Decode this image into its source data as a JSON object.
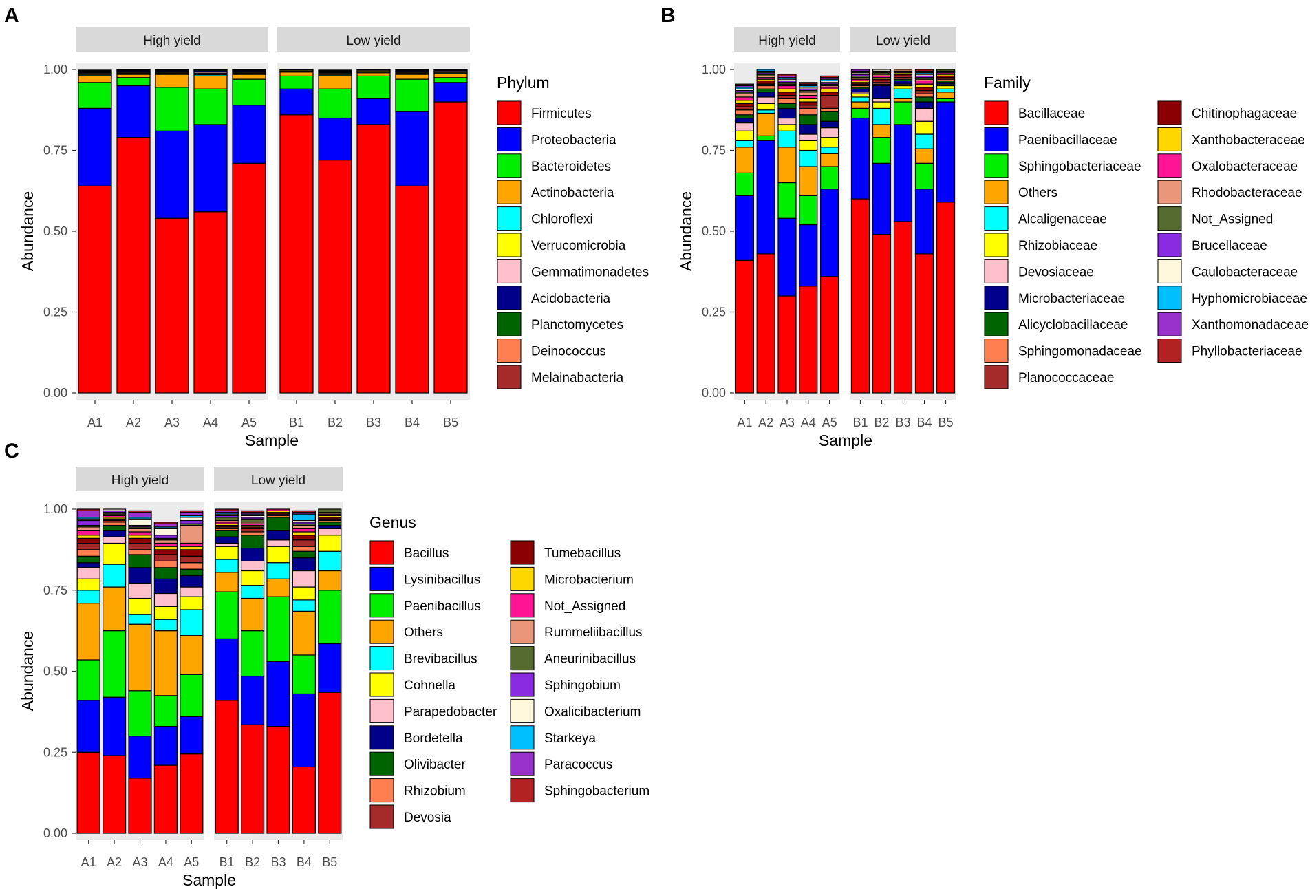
{
  "panels": {
    "A": {
      "letter": "A"
    },
    "B": {
      "letter": "B"
    },
    "C": {
      "letter": "C"
    }
  },
  "chart_data": [
    {
      "panel": "A",
      "type": "bar",
      "stacked": true,
      "title": "",
      "xlabel": "Sample",
      "ylabel": "Abundance",
      "ylim": [
        0,
        1
      ],
      "yticks": [
        "0.00",
        "0.25",
        "0.50",
        "0.75",
        "1.00"
      ],
      "facets": [
        {
          "label": "High yield",
          "categories": [
            "A1",
            "A2",
            "A3",
            "A4",
            "A5"
          ]
        },
        {
          "label": "Low yield",
          "categories": [
            "B1",
            "B2",
            "B3",
            "B4",
            "B5"
          ]
        }
      ],
      "legend_title": "Phylum",
      "legend_columns": 1,
      "series": [
        {
          "name": "Firmicutes",
          "color": "#ff0000",
          "values": [
            0.64,
            0.79,
            0.54,
            0.56,
            0.71,
            0.86,
            0.72,
            0.83,
            0.64,
            0.9
          ]
        },
        {
          "name": "Proteobacteria",
          "color": "#0000ff",
          "values": [
            0.24,
            0.16,
            0.27,
            0.27,
            0.18,
            0.08,
            0.13,
            0.08,
            0.23,
            0.06
          ]
        },
        {
          "name": "Bacteroidetes",
          "color": "#00ee00",
          "values": [
            0.08,
            0.025,
            0.135,
            0.11,
            0.08,
            0.04,
            0.09,
            0.07,
            0.1,
            0.015
          ]
        },
        {
          "name": "Actinobacteria",
          "color": "#ffa500",
          "values": [
            0.02,
            0.01,
            0.04,
            0.04,
            0.015,
            0.012,
            0.04,
            0.01,
            0.015,
            0.012
          ]
        },
        {
          "name": "Chloroflexi",
          "color": "#00ffff",
          "values": [
            0.003,
            0.003,
            0.003,
            0.004,
            0.003,
            0.003,
            0.003,
            0.003,
            0.003,
            0.003
          ]
        },
        {
          "name": "Verrucomicrobia",
          "color": "#ffff00",
          "values": [
            0.003,
            0.003,
            0.003,
            0.004,
            0.003,
            0.003,
            0.003,
            0.003,
            0.003,
            0.003
          ]
        },
        {
          "name": "Gemmatimonadetes",
          "color": "#ffc0cb",
          "values": [
            0.003,
            0.003,
            0.003,
            0.004,
            0.003,
            0.003,
            0.003,
            0.003,
            0.003,
            0.003
          ]
        },
        {
          "name": "Acidobacteria",
          "color": "#00008b",
          "values": [
            0.003,
            0.003,
            0.003,
            0.004,
            0.003,
            0.003,
            0.003,
            0.003,
            0.003,
            0.003
          ]
        },
        {
          "name": "Planctomycetes",
          "color": "#006400",
          "values": [
            0.002,
            0.002,
            0.002,
            0.003,
            0.002,
            0.002,
            0.002,
            0.002,
            0.002,
            0.002
          ]
        },
        {
          "name": "Deinococcus",
          "color": "#ff7f50",
          "values": [
            0.002,
            0.002,
            0.002,
            0.003,
            0.002,
            0.002,
            0.002,
            0.002,
            0.002,
            0.002
          ]
        },
        {
          "name": "Melainabacteria",
          "color": "#a52a2a",
          "values": [
            0.002,
            0.002,
            0.002,
            0.003,
            0.002,
            0.002,
            0.002,
            0.002,
            0.002,
            0.002
          ]
        }
      ]
    },
    {
      "panel": "B",
      "type": "bar",
      "stacked": true,
      "title": "",
      "xlabel": "Sample",
      "ylabel": "Abundance",
      "ylim": [
        0,
        1
      ],
      "yticks": [
        "0.00",
        "0.25",
        "0.50",
        "0.75",
        "1.00"
      ],
      "facets": [
        {
          "label": "High yield",
          "categories": [
            "A1",
            "A2",
            "A3",
            "A4",
            "A5"
          ]
        },
        {
          "label": "Low yield",
          "categories": [
            "B1",
            "B2",
            "B3",
            "B4",
            "B5"
          ]
        }
      ],
      "legend_title": "Family",
      "legend_columns": 2,
      "series": [
        {
          "name": "Bacillaceae",
          "color": "#ff0000",
          "values": [
            0.41,
            0.43,
            0.3,
            0.33,
            0.36,
            0.6,
            0.49,
            0.53,
            0.43,
            0.59
          ]
        },
        {
          "name": "Paenibacillaceae",
          "color": "#0000ff",
          "values": [
            0.2,
            0.35,
            0.24,
            0.19,
            0.27,
            0.25,
            0.22,
            0.3,
            0.2,
            0.31
          ]
        },
        {
          "name": "Sphingobacteriaceae",
          "color": "#00ee00",
          "values": [
            0.07,
            0.015,
            0.11,
            0.09,
            0.07,
            0.03,
            0.08,
            0.07,
            0.08,
            0.01
          ]
        },
        {
          "name": "Others",
          "color": "#ffa500",
          "values": [
            0.08,
            0.07,
            0.11,
            0.09,
            0.04,
            0.02,
            0.04,
            0.01,
            0.045,
            0.02
          ]
        },
        {
          "name": "Alcaligenaceae",
          "color": "#00ffff",
          "values": [
            0.02,
            0.01,
            0.05,
            0.05,
            0.02,
            0.015,
            0.05,
            0.03,
            0.045,
            0.01
          ]
        },
        {
          "name": "Rhizobiaceae",
          "color": "#ffff00",
          "values": [
            0.03,
            0.02,
            0.02,
            0.03,
            0.03,
            0.01,
            0.02,
            0.01,
            0.04,
            0.01
          ]
        },
        {
          "name": "Devosiaceae",
          "color": "#ffc0cb",
          "values": [
            0.025,
            0.02,
            0.02,
            0.02,
            0.03,
            0.005,
            0.01,
            0.005,
            0.04,
            0.005
          ]
        },
        {
          "name": "Microbacteriaceae",
          "color": "#00008b",
          "values": [
            0.015,
            0.015,
            0.03,
            0.03,
            0.02,
            0.01,
            0.04,
            0.01,
            0.02,
            0.005
          ]
        },
        {
          "name": "Alicyclobacillaceae",
          "color": "#006400",
          "values": [
            0.01,
            0.01,
            0.015,
            0.03,
            0.03,
            0.005,
            0.005,
            0.005,
            0.015,
            0.005
          ]
        },
        {
          "name": "Sphingomonadaceae",
          "color": "#ff7f50",
          "values": [
            0.015,
            0.01,
            0.015,
            0.02,
            0.01,
            0.005,
            0.005,
            0.005,
            0.01,
            0.005
          ]
        },
        {
          "name": "Planococcaceae",
          "color": "#a52a2a",
          "values": [
            0.01,
            0.005,
            0.01,
            0.01,
            0.04,
            0.005,
            0.005,
            0.005,
            0.01,
            0.005
          ]
        },
        {
          "name": "Chitinophagaceae",
          "color": "#8b0000",
          "values": [
            0.01,
            0.01,
            0.01,
            0.01,
            0.01,
            0.005,
            0.005,
            0.005,
            0.01,
            0.005
          ]
        },
        {
          "name": "Xanthobacteraceae",
          "color": "#ffd700",
          "values": [
            0.01,
            0.005,
            0.01,
            0.01,
            0.01,
            0.005,
            0.005,
            0.005,
            0.01,
            0.005
          ]
        },
        {
          "name": "Oxalobacteraceae",
          "color": "#ff1493",
          "values": [
            0.01,
            0.005,
            0.01,
            0.01,
            0.005,
            0.005,
            0.005,
            0.005,
            0.01,
            0.005
          ]
        },
        {
          "name": "Rhodobacteraceae",
          "color": "#e9967a",
          "values": [
            0.01,
            0.005,
            0.005,
            0.01,
            0.005,
            0.005,
            0.005,
            0.005,
            0.005,
            0.005
          ]
        },
        {
          "name": "Not_Assigned",
          "color": "#556b2f",
          "values": [
            0.005,
            0.005,
            0.005,
            0.005,
            0.005,
            0.005,
            0.005,
            0.005,
            0.005,
            0.005
          ]
        },
        {
          "name": "Brucellaceae",
          "color": "#8a2be2",
          "values": [
            0.005,
            0.005,
            0.005,
            0.005,
            0.005,
            0.005,
            0.005,
            0.005,
            0.005,
            0.005
          ]
        },
        {
          "name": "Caulobacteraceae",
          "color": "#fff8dc",
          "values": [
            0.005,
            0.005,
            0.005,
            0.005,
            0.005,
            0.005,
            0.005,
            0.005,
            0.005,
            0.005
          ]
        },
        {
          "name": "Hyphomicrobiaceae",
          "color": "#00bfff",
          "values": [
            0.005,
            0.005,
            0.005,
            0.005,
            0.005,
            0.005,
            0.005,
            0.005,
            0.005,
            0.005
          ]
        },
        {
          "name": "Xanthomonadaceae",
          "color": "#9932cc",
          "values": [
            0.005,
            0.005,
            0.005,
            0.005,
            0.005,
            0.005,
            0.005,
            0.005,
            0.005,
            0.005
          ]
        },
        {
          "name": "Phyllobacteriaceae",
          "color": "#b22222",
          "values": [
            0.005,
            0.005,
            0.005,
            0.005,
            0.005,
            0.005,
            0.005,
            0.005,
            0.005,
            0.005
          ]
        }
      ]
    },
    {
      "panel": "C",
      "type": "bar",
      "stacked": true,
      "title": "",
      "xlabel": "Sample",
      "ylabel": "Abundance",
      "ylim": [
        0,
        1
      ],
      "yticks": [
        "0.00",
        "0.25",
        "0.50",
        "0.75",
        "1.00"
      ],
      "facets": [
        {
          "label": "High yield",
          "categories": [
            "A1",
            "A2",
            "A3",
            "A4",
            "A5"
          ]
        },
        {
          "label": "Low yield",
          "categories": [
            "B1",
            "B2",
            "B3",
            "B4",
            "B5"
          ]
        }
      ],
      "legend_title": "Genus",
      "legend_columns": 2,
      "series": [
        {
          "name": "Bacillus",
          "color": "#ff0000",
          "values": [
            0.25,
            0.24,
            0.17,
            0.21,
            0.245,
            0.41,
            0.335,
            0.33,
            0.205,
            0.435
          ]
        },
        {
          "name": "Lysinibacillus",
          "color": "#0000ff",
          "values": [
            0.16,
            0.18,
            0.13,
            0.12,
            0.115,
            0.19,
            0.15,
            0.2,
            0.225,
            0.15
          ]
        },
        {
          "name": "Paenibacillus",
          "color": "#00ee00",
          "values": [
            0.125,
            0.205,
            0.14,
            0.095,
            0.13,
            0.145,
            0.14,
            0.2,
            0.12,
            0.165
          ]
        },
        {
          "name": "Others",
          "color": "#ffa500",
          "values": [
            0.175,
            0.135,
            0.205,
            0.2,
            0.12,
            0.06,
            0.1,
            0.055,
            0.135,
            0.06
          ]
        },
        {
          "name": "Brevibacillus",
          "color": "#00ffff",
          "values": [
            0.04,
            0.07,
            0.03,
            0.035,
            0.08,
            0.04,
            0.04,
            0.05,
            0.035,
            0.06
          ]
        },
        {
          "name": "Cohnella",
          "color": "#ffff00",
          "values": [
            0.035,
            0.065,
            0.05,
            0.04,
            0.04,
            0.04,
            0.045,
            0.05,
            0.04,
            0.05
          ]
        },
        {
          "name": "Parapedobacter",
          "color": "#ffc0cb",
          "values": [
            0.035,
            0.02,
            0.045,
            0.04,
            0.03,
            0.01,
            0.03,
            0.02,
            0.05,
            0.02
          ]
        },
        {
          "name": "Bordetella",
          "color": "#00008b",
          "values": [
            0.015,
            0.02,
            0.05,
            0.045,
            0.035,
            0.02,
            0.04,
            0.03,
            0.04,
            0.01
          ]
        },
        {
          "name": "Olivibacter",
          "color": "#006400",
          "values": [
            0.02,
            0.015,
            0.04,
            0.035,
            0.02,
            0.02,
            0.04,
            0.04,
            0.02,
            0.01
          ]
        },
        {
          "name": "Rhizobium",
          "color": "#ff7f50",
          "values": [
            0.02,
            0.01,
            0.015,
            0.02,
            0.02,
            0.005,
            0.01,
            0.005,
            0.015,
            0.005
          ]
        },
        {
          "name": "Devosia",
          "color": "#a52a2a",
          "values": [
            0.02,
            0.005,
            0.02,
            0.02,
            0.02,
            0.005,
            0.01,
            0.005,
            0.02,
            0.005
          ]
        },
        {
          "name": "Tumebacillus",
          "color": "#8b0000",
          "values": [
            0.015,
            0.005,
            0.015,
            0.015,
            0.02,
            0.005,
            0.005,
            0.005,
            0.015,
            0.005
          ]
        },
        {
          "name": "Microbacterium",
          "color": "#ffd700",
          "values": [
            0.01,
            0.005,
            0.01,
            0.01,
            0.01,
            0.005,
            0.005,
            0.005,
            0.01,
            0.005
          ]
        },
        {
          "name": "Not_Assigned",
          "color": "#ff1493",
          "values": [
            0.015,
            0.005,
            0.01,
            0.01,
            0.01,
            0.005,
            0.005,
            0.005,
            0.01,
            0.005
          ]
        },
        {
          "name": "Rummeliibacillus",
          "color": "#e9967a",
          "values": [
            0.01,
            0.005,
            0.01,
            0.01,
            0.055,
            0.005,
            0.005,
            0.005,
            0.01,
            0.005
          ]
        },
        {
          "name": "Aneurinibacillus",
          "color": "#556b2f",
          "values": [
            0.005,
            0.005,
            0.005,
            0.005,
            0.005,
            0.01,
            0.01,
            0.01,
            0.005,
            0.03
          ]
        },
        {
          "name": "Sphingobium",
          "color": "#8a2be2",
          "values": [
            0.015,
            0.005,
            0.005,
            0.01,
            0.01,
            0.005,
            0.005,
            0.005,
            0.005,
            0.005
          ]
        },
        {
          "name": "Oxalicibacterium",
          "color": "#fff8dc",
          "values": [
            0.005,
            0.005,
            0.02,
            0.02,
            0.01,
            0.005,
            0.005,
            0.005,
            0.005,
            0.005
          ]
        },
        {
          "name": "Starkeya",
          "color": "#00bfff",
          "values": [
            0.005,
            0.005,
            0.005,
            0.005,
            0.005,
            0.005,
            0.005,
            0.005,
            0.02,
            0.005
          ]
        },
        {
          "name": "Paracoccus",
          "color": "#9932cc",
          "values": [
            0.02,
            0.02,
            0.015,
            0.01,
            0.01,
            0.005,
            0.005,
            0.005,
            0.005,
            0.005
          ]
        },
        {
          "name": "Sphingobacterium",
          "color": "#b22222",
          "values": [
            0.005,
            0.005,
            0.005,
            0.005,
            0.005,
            0.005,
            0.005,
            0.005,
            0.005,
            0.005
          ]
        }
      ]
    }
  ]
}
